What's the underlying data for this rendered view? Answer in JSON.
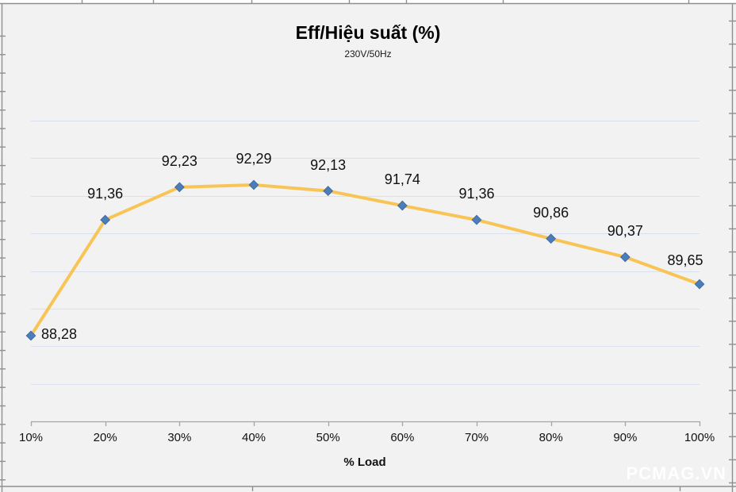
{
  "chart_data": {
    "type": "line",
    "title": "Eff/Hiệu suất (%)",
    "subtitle": "230V/50Hz",
    "xlabel": "% Load",
    "categories": [
      "10%",
      "20%",
      "30%",
      "40%",
      "50%",
      "60%",
      "70%",
      "80%",
      "90%",
      "100%"
    ],
    "series": [
      {
        "name": "Eff/Hiệu suất (%)",
        "values": [
          88.28,
          91.36,
          92.23,
          92.29,
          92.13,
          91.74,
          91.36,
          90.86,
          90.37,
          89.65
        ],
        "point_labels": [
          "88,28",
          "91,36",
          "92,23",
          "92,29",
          "92,13",
          "91,74",
          "91,36",
          "90,86",
          "90,37",
          "89,65"
        ]
      }
    ],
    "ylim": [
      86,
      94
    ],
    "ytick_step": 1,
    "grid": true,
    "legend": "none",
    "colors": {
      "line": "#F8C455",
      "marker_fill": "#4C7CBA",
      "marker_stroke": "#3E6CA5",
      "gridline": "#D9E1F0",
      "axis_line": "#A6A6A6",
      "border_line": "#8F8F8F",
      "plot_background": "#F2F2F2",
      "text": "#111111"
    }
  },
  "watermark": "PCMAG.VN"
}
